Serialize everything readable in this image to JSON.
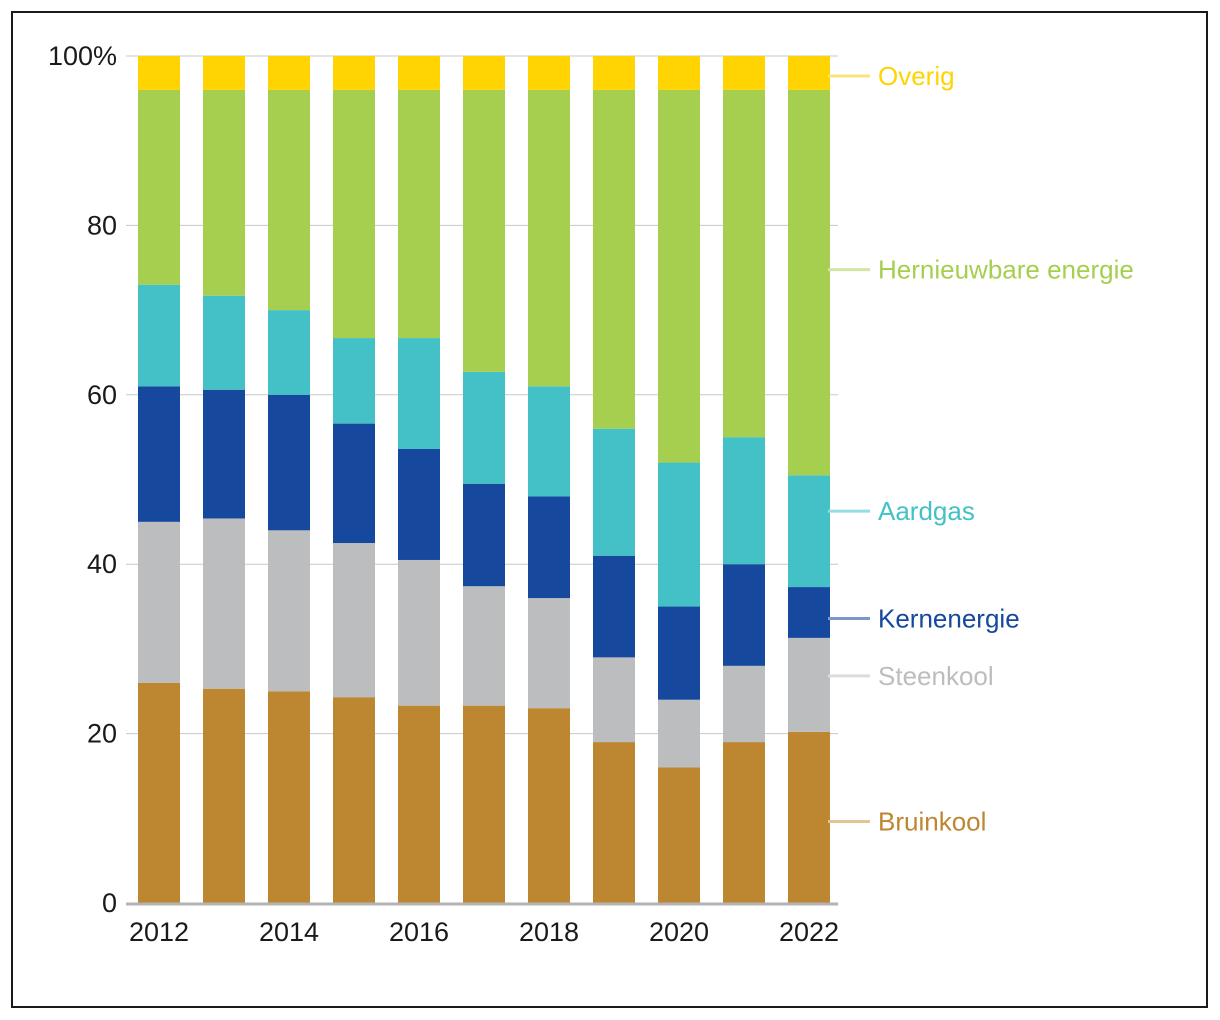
{
  "chart_data": {
    "type": "bar",
    "stacked": true,
    "title": "",
    "xlabel": "",
    "ylabel": "",
    "ylim": [
      0,
      100
    ],
    "categories": [
      "2012",
      "2013",
      "2014",
      "2015",
      "2016",
      "2017",
      "2018",
      "2019",
      "2020",
      "2021",
      "2022"
    ],
    "x_tick_labels": [
      "2012",
      "2014",
      "2016",
      "2018",
      "2020",
      "2022"
    ],
    "y_ticks": [
      0,
      20,
      40,
      60,
      80,
      100
    ],
    "y_tick_labels": [
      "0",
      "20",
      "40",
      "60",
      "80",
      "100%"
    ],
    "legend_placement": "right",
    "grid": true,
    "series": [
      {
        "name": "Bruinkool",
        "color": "#bd8731",
        "legend_line": "#e5c58f",
        "values": [
          26,
          25.3,
          25,
          24.3,
          23.3,
          23.3,
          23,
          19,
          16,
          19,
          20.2
        ]
      },
      {
        "name": "Steenkool",
        "color": "#bcbdbf",
        "legend_line": "#dcdcdc",
        "values": [
          19,
          20.1,
          19,
          18.2,
          17.2,
          14.1,
          13,
          10,
          8,
          9,
          11.1
        ]
      },
      {
        "name": "Kernenergie",
        "color": "#16489e",
        "legend_line": "#7b97cb",
        "values": [
          16,
          15.2,
          16,
          14.1,
          13.1,
          12.1,
          12,
          12,
          11,
          12,
          6
        ]
      },
      {
        "name": "Aardgas",
        "color": "#44c1c6",
        "legend_line": "#96dce0",
        "values": [
          12,
          11.1,
          10,
          10.1,
          13.1,
          13.2,
          13,
          15,
          17,
          15,
          13.2
        ]
      },
      {
        "name": "Hernieuwbare energie",
        "color": "#a7cf4f",
        "legend_line": "#d2e5a2",
        "values": [
          23,
          24.3,
          26,
          29.3,
          29.3,
          33.3,
          35,
          40,
          44,
          41,
          45.5
        ]
      },
      {
        "name": "Overig",
        "color": "#ffd402",
        "legend_line": "#fbe37c",
        "values": [
          4,
          4,
          4,
          4,
          4,
          4,
          4,
          4,
          4,
          4,
          4
        ]
      }
    ]
  }
}
